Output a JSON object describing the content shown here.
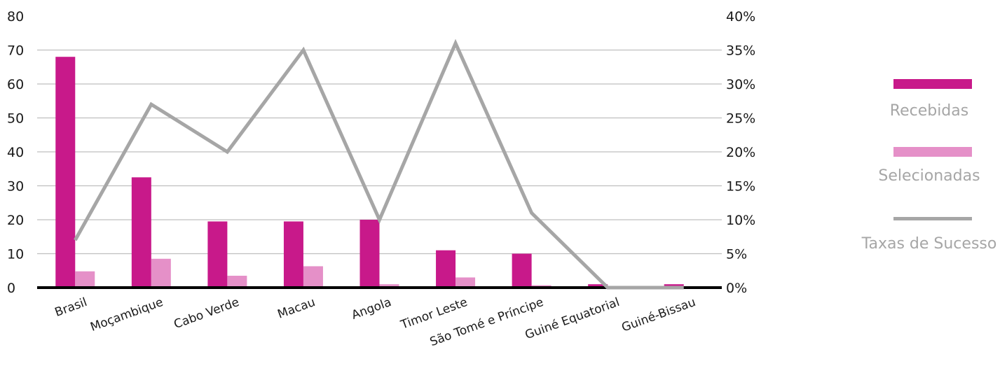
{
  "colors": {
    "recebidas": "#c8198a",
    "selecionadas": "#e590c8",
    "taxas": "#a6a6a6",
    "gridline": "#bfbfbf",
    "baseline": "#000000"
  },
  "legend": {
    "items": [
      {
        "label": "Recebidas",
        "key": "recebidas",
        "shape": "bar"
      },
      {
        "label": "Selecionadas",
        "key": "selecionadas",
        "shape": "bar"
      },
      {
        "label": "Taxas de Sucesso",
        "key": "taxas",
        "shape": "line"
      }
    ]
  },
  "chart_data": {
    "type": "bar",
    "legend_position": "right",
    "grid": true,
    "categories": [
      "Brasil",
      "Moçambique",
      "Cabo Verde",
      "Macau",
      "Angola",
      "Timor Leste",
      "São Tomé e Príncipe",
      "Guiné Equatorial",
      "Guiné-Bissau"
    ],
    "series": [
      {
        "name": "Recebidas",
        "type": "bar",
        "axis": "left",
        "values": [
          68,
          32.5,
          19.5,
          19.5,
          20,
          11,
          10,
          1,
          1
        ]
      },
      {
        "name": "Selecionadas",
        "type": "bar",
        "axis": "left",
        "values": [
          4.8,
          8.5,
          3.5,
          6.3,
          1,
          3,
          0.7,
          0,
          0
        ]
      },
      {
        "name": "Taxas de Sucesso",
        "type": "line",
        "axis": "right",
        "values": [
          0.07,
          0.27,
          0.2,
          0.35,
          0.1,
          0.36,
          0.11,
          0,
          0
        ]
      }
    ],
    "y_left": {
      "min": 0,
      "max": 80,
      "ticks": [
        "0",
        "10",
        "20",
        "30",
        "40",
        "50",
        "60",
        "70",
        "80"
      ]
    },
    "y_right": {
      "min": 0,
      "max": 0.4,
      "ticks": [
        "0%",
        "5%",
        "10%",
        "15%",
        "20%",
        "25%",
        "30%",
        "35%",
        "40%"
      ]
    }
  }
}
